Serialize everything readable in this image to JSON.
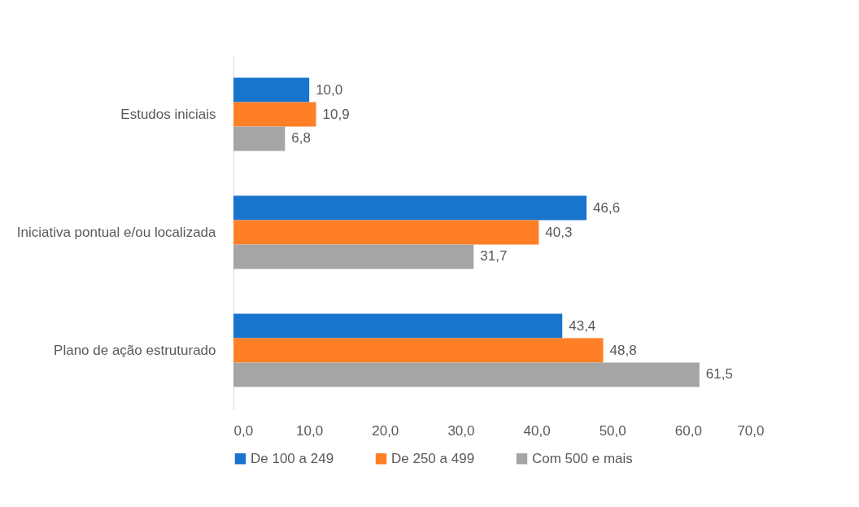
{
  "chart_data": {
    "type": "bar",
    "orientation": "horizontal",
    "categories": [
      "Estudos iniciais",
      "Iniciativa pontual e/ou localizada",
      "Plano de ação estruturado"
    ],
    "series": [
      {
        "name": "De  100 a 249",
        "color": "#1874cd",
        "values": [
          10.0,
          46.6,
          43.4
        ],
        "value_labels": [
          "10,0",
          "46,6",
          "43,4"
        ]
      },
      {
        "name": "De  250 a 499",
        "color": "#ff7f27",
        "values": [
          10.9,
          40.3,
          48.8
        ],
        "value_labels": [
          "10,9",
          "40,3",
          "48,8"
        ]
      },
      {
        "name": "Com 500 e mais",
        "color": "#a5a5a5",
        "values": [
          6.8,
          31.7,
          61.5
        ],
        "value_labels": [
          "6,8",
          "31,7",
          "61,5"
        ]
      }
    ],
    "xlim": [
      0,
      70
    ],
    "xticks": [
      {
        "value": 0,
        "label": "0,0"
      },
      {
        "value": 10,
        "label": "10,0"
      },
      {
        "value": 20,
        "label": "20,0"
      },
      {
        "value": 30,
        "label": "30,0"
      },
      {
        "value": 40,
        "label": "40,0"
      },
      {
        "value": 50,
        "label": "50,0"
      },
      {
        "value": 60,
        "label": "60,0"
      },
      {
        "value": 70,
        "label": "70,0"
      }
    ],
    "legend": "bottom"
  }
}
